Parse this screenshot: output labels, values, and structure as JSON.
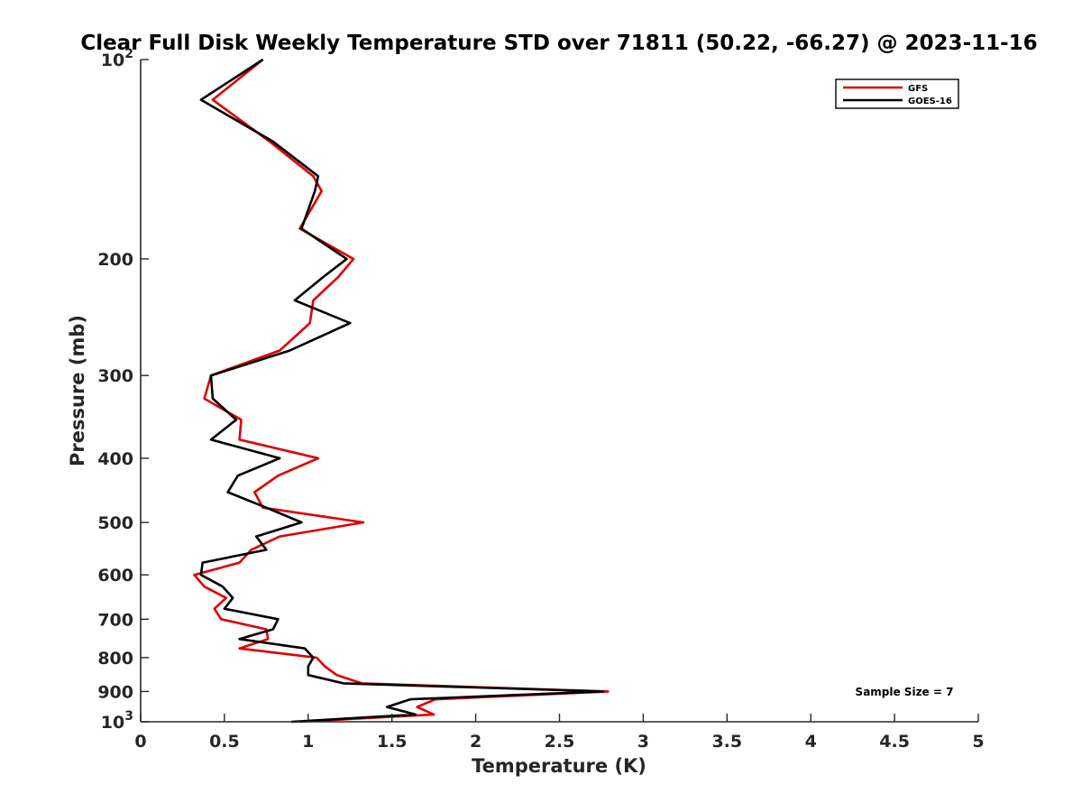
{
  "chart_data": {
    "type": "line",
    "title": "Clear Full Disk Weekly Temperature STD over 71811 (50.22, -66.27) @ 2023-11-16",
    "xlabel": "Temperature (K)",
    "ylabel": "Pressure (mb)",
    "xlim": [
      0,
      5
    ],
    "ylim": [
      100,
      1000
    ],
    "y_scale": "log",
    "y_reversed": true,
    "x_ticks": [
      "0",
      "0.5",
      "1",
      "1.5",
      "2",
      "2.5",
      "3",
      "3.5",
      "4",
      "4.5",
      "5"
    ],
    "y_ticks": [
      {
        "value": 100,
        "label": "10",
        "sup": "2"
      },
      {
        "value": 200,
        "label": "200"
      },
      {
        "value": 300,
        "label": "300"
      },
      {
        "value": 400,
        "label": "400"
      },
      {
        "value": 500,
        "label": "500"
      },
      {
        "value": 600,
        "label": "600"
      },
      {
        "value": 700,
        "label": "700"
      },
      {
        "value": 800,
        "label": "800"
      },
      {
        "value": 900,
        "label": "900"
      },
      {
        "value": 1000,
        "label": "10",
        "sup": "3"
      }
    ],
    "legend_position": "top-right",
    "series": [
      {
        "name": "GFS",
        "color": "#e00000",
        "points": [
          [
            0.73,
            100
          ],
          [
            0.43,
            115
          ],
          [
            0.77,
            133
          ],
          [
            1.03,
            150
          ],
          [
            1.08,
            158
          ],
          [
            0.95,
            180
          ],
          [
            1.27,
            200
          ],
          [
            1.18,
            213
          ],
          [
            1.03,
            231
          ],
          [
            1.01,
            250
          ],
          [
            0.83,
            275
          ],
          [
            0.42,
            300
          ],
          [
            0.38,
            325
          ],
          [
            0.6,
            350
          ],
          [
            0.59,
            375
          ],
          [
            1.06,
            400
          ],
          [
            0.82,
            425
          ],
          [
            0.68,
            450
          ],
          [
            0.73,
            475
          ],
          [
            1.33,
            500
          ],
          [
            0.83,
            525
          ],
          [
            0.66,
            550
          ],
          [
            0.59,
            575
          ],
          [
            0.32,
            600
          ],
          [
            0.38,
            625
          ],
          [
            0.51,
            650
          ],
          [
            0.44,
            675
          ],
          [
            0.48,
            700
          ],
          [
            0.75,
            725
          ],
          [
            0.76,
            750
          ],
          [
            0.59,
            775
          ],
          [
            1.05,
            800
          ],
          [
            1.1,
            825
          ],
          [
            1.17,
            850
          ],
          [
            1.32,
            875
          ],
          [
            2.79,
            900
          ],
          [
            1.76,
            925
          ],
          [
            1.65,
            950
          ],
          [
            1.75,
            975
          ],
          [
            0.95,
            1000
          ]
        ]
      },
      {
        "name": "GOES-16",
        "color": "#000000",
        "points": [
          [
            0.73,
            100
          ],
          [
            0.36,
            115
          ],
          [
            0.79,
            133
          ],
          [
            1.06,
            150
          ],
          [
            1.04,
            158
          ],
          [
            0.96,
            180
          ],
          [
            1.23,
            200
          ],
          [
            1.09,
            213
          ],
          [
            0.92,
            231
          ],
          [
            1.25,
            250
          ],
          [
            0.89,
            275
          ],
          [
            0.42,
            300
          ],
          [
            0.43,
            325
          ],
          [
            0.57,
            350
          ],
          [
            0.42,
            375
          ],
          [
            0.83,
            400
          ],
          [
            0.58,
            425
          ],
          [
            0.52,
            450
          ],
          [
            0.75,
            475
          ],
          [
            0.96,
            500
          ],
          [
            0.69,
            525
          ],
          [
            0.75,
            550
          ],
          [
            0.37,
            575
          ],
          [
            0.36,
            600
          ],
          [
            0.49,
            625
          ],
          [
            0.55,
            650
          ],
          [
            0.5,
            675
          ],
          [
            0.82,
            700
          ],
          [
            0.79,
            725
          ],
          [
            0.59,
            750
          ],
          [
            0.98,
            775
          ],
          [
            1.03,
            800
          ],
          [
            1.0,
            825
          ],
          [
            1.0,
            850
          ],
          [
            1.21,
            875
          ],
          [
            2.76,
            900
          ],
          [
            1.61,
            925
          ],
          [
            1.47,
            950
          ],
          [
            1.64,
            975
          ],
          [
            0.9,
            1000
          ]
        ]
      }
    ],
    "annotations": [
      "Sample Size = 7"
    ]
  }
}
